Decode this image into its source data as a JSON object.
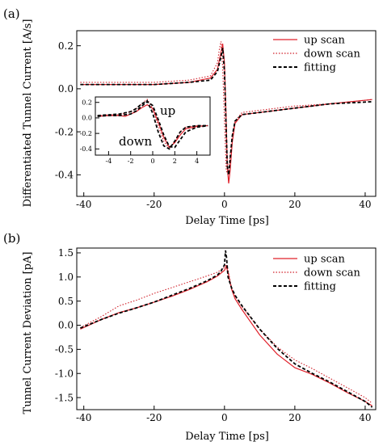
{
  "chart_data": [
    {
      "type": "line",
      "panel_label": "(a)",
      "xlabel": "Delay Time [ps]",
      "ylabel": "Differentiated Tunnel Current [A/s]",
      "xlim": [
        -42,
        43
      ],
      "ylim": [
        -0.5,
        0.27
      ],
      "xticks": [
        -40,
        -20,
        0,
        20,
        40
      ],
      "yticks": [
        0.2,
        0.0,
        -0.2,
        -0.4
      ],
      "ytick_labels": [
        "0.2",
        "0.0",
        "-0.2",
        "-0.4"
      ],
      "legend_position": "top-right",
      "series": [
        {
          "name": "up scan",
          "color": "#e0202a",
          "style": "solid",
          "x": [
            -41,
            -30,
            -20,
            -10,
            -4,
            -2,
            -1,
            -0.5,
            0,
            0.4,
            0.8,
            1.2,
            1.6,
            2.2,
            3,
            5,
            10,
            20,
            30,
            42
          ],
          "y": [
            0.02,
            0.02,
            0.02,
            0.03,
            0.05,
            0.09,
            0.17,
            0.21,
            0.12,
            -0.1,
            -0.36,
            -0.44,
            -0.38,
            -0.25,
            -0.16,
            -0.12,
            -0.11,
            -0.09,
            -0.07,
            -0.05
          ]
        },
        {
          "name": "down scan",
          "color": "#d0202a",
          "style": "dotted",
          "x": [
            -41,
            -30,
            -20,
            -10,
            -4,
            -2,
            -1.5,
            -1,
            -0.5,
            0,
            0.5,
            1,
            1.5,
            2.2,
            3,
            5,
            10,
            20,
            30,
            42
          ],
          "y": [
            0.03,
            0.03,
            0.03,
            0.04,
            0.06,
            0.12,
            0.18,
            0.22,
            0.1,
            -0.15,
            -0.38,
            -0.4,
            -0.32,
            -0.22,
            -0.15,
            -0.11,
            -0.1,
            -0.08,
            -0.07,
            -0.05
          ]
        },
        {
          "name": "fitting",
          "color": "#000000",
          "style": "dashed",
          "x": [
            -41,
            -30,
            -20,
            -10,
            -4,
            -2,
            -1,
            -0.5,
            0,
            0.4,
            0.8,
            1.2,
            1.6,
            2.2,
            3,
            5,
            10,
            20,
            30,
            42
          ],
          "y": [
            0.02,
            0.02,
            0.02,
            0.03,
            0.04,
            0.08,
            0.15,
            0.19,
            0.08,
            -0.15,
            -0.36,
            -0.4,
            -0.33,
            -0.22,
            -0.15,
            -0.12,
            -0.11,
            -0.09,
            -0.07,
            -0.06
          ]
        }
      ],
      "inset": {
        "xlim": [
          -5.2,
          5.2
        ],
        "ylim": [
          -0.48,
          0.27
        ],
        "xticks": [
          -4,
          -2,
          0,
          2,
          4
        ],
        "yticks": [
          0.2,
          0.0,
          -0.2,
          -0.4
        ],
        "ytick_labels": [
          "0.2",
          "0.0",
          "-0.2",
          "-0.4"
        ],
        "annotations": [
          "up",
          "down"
        ],
        "series": [
          {
            "name": "up scan",
            "color": "#e0202a",
            "style": "solid",
            "x": [
              -5,
              -4,
              -3,
              -2.5,
              -2,
              -1.5,
              -1,
              -0.5,
              0,
              0.5,
              1,
              1.5,
              2,
              2.5,
              3,
              4,
              5
            ],
            "y": [
              0.02,
              0.03,
              0.03,
              0.02,
              0.05,
              0.08,
              0.13,
              0.17,
              0.12,
              -0.05,
              -0.25,
              -0.38,
              -0.32,
              -0.22,
              -0.14,
              -0.11,
              -0.1
            ]
          },
          {
            "name": "down scan",
            "color": "#d0202a",
            "style": "dotted",
            "x": [
              -5,
              -4,
              -3,
              -2,
              -1.5,
              -1,
              -0.5,
              0,
              0.5,
              1,
              1.5,
              2,
              2.5,
              3,
              4,
              5
            ],
            "y": [
              0.03,
              0.04,
              0.04,
              0.08,
              0.12,
              0.18,
              0.24,
              0.12,
              -0.1,
              -0.3,
              -0.4,
              -0.3,
              -0.18,
              -0.12,
              -0.1,
              -0.1
            ]
          },
          {
            "name": "fitting",
            "color": "#000000",
            "style": "dashed",
            "x": [
              -5,
              -4,
              -3,
              -2,
              -1.5,
              -1,
              -0.5,
              0,
              0.5,
              1,
              1.5,
              2,
              2.5,
              3,
              4,
              5
            ],
            "y": [
              0.02,
              0.03,
              0.03,
              0.05,
              0.09,
              0.15,
              0.21,
              0.16,
              -0.02,
              -0.22,
              -0.37,
              -0.38,
              -0.28,
              -0.18,
              -0.12,
              -0.1
            ]
          },
          {
            "name": "fitting",
            "color": "#000000",
            "style": "dashed",
            "x": [
              -5,
              -4,
              -3,
              -2,
              -1.5,
              -1,
              -0.5,
              0,
              0.5,
              1,
              1.5,
              2,
              2.5,
              3,
              4,
              5
            ],
            "y": [
              0.03,
              0.04,
              0.05,
              0.08,
              0.12,
              0.18,
              0.22,
              0.06,
              -0.18,
              -0.36,
              -0.4,
              -0.3,
              -0.18,
              -0.12,
              -0.1,
              -0.1
            ]
          }
        ]
      }
    },
    {
      "type": "line",
      "panel_label": "(b)",
      "xlabel": "Delay Time [ps]",
      "ylabel": "Tunnel Current Deviation [pA]",
      "xlim": [
        -42,
        43
      ],
      "ylim": [
        -1.75,
        1.6
      ],
      "xticks": [
        -40,
        -20,
        0,
        20,
        40
      ],
      "yticks": [
        1.5,
        1.0,
        0.5,
        0.0,
        -0.5,
        -1.0,
        -1.5
      ],
      "ytick_labels": [
        "1.5",
        "1.0",
        "0.5",
        "0.0",
        "-0.5",
        "-1.0",
        "-1.5"
      ],
      "legend_position": "top-right",
      "series": [
        {
          "name": "up scan",
          "color": "#e0202a",
          "style": "solid",
          "x": [
            -41,
            -35,
            -30,
            -25,
            -20,
            -15,
            -10,
            -5,
            -2,
            -1,
            0,
            0.5,
            1,
            2,
            3,
            5,
            10,
            15,
            20,
            25,
            30,
            35,
            40,
            42
          ],
          "y": [
            -0.08,
            0.12,
            0.26,
            0.36,
            0.48,
            0.6,
            0.74,
            0.9,
            1.02,
            1.08,
            1.14,
            1.22,
            1.1,
            0.75,
            0.55,
            0.32,
            -0.2,
            -0.6,
            -0.88,
            -1.02,
            -1.2,
            -1.4,
            -1.58,
            -1.67
          ]
        },
        {
          "name": "down scan",
          "color": "#d0202a",
          "style": "dotted",
          "x": [
            -41,
            -35,
            -30,
            -25,
            -20,
            -15,
            -10,
            -5,
            -2,
            -1,
            0,
            0.5,
            1,
            2,
            3,
            5,
            10,
            15,
            20,
            25,
            30,
            35,
            40,
            42
          ],
          "y": [
            -0.05,
            0.18,
            0.4,
            0.52,
            0.66,
            0.78,
            0.9,
            1.02,
            1.1,
            1.15,
            1.2,
            1.26,
            1.15,
            0.78,
            0.6,
            0.38,
            -0.08,
            -0.45,
            -0.72,
            -0.9,
            -1.1,
            -1.3,
            -1.5,
            -1.62
          ]
        },
        {
          "name": "fitting",
          "color": "#000000",
          "style": "dashed",
          "x": [
            -41,
            -35,
            -30,
            -25,
            -20,
            -15,
            -10,
            -5,
            -2,
            -1,
            0,
            0.3,
            0.6,
            1,
            2,
            3,
            5,
            10,
            15,
            20,
            25,
            30,
            35,
            40,
            42
          ],
          "y": [
            -0.06,
            0.12,
            0.25,
            0.36,
            0.48,
            0.62,
            0.76,
            0.92,
            1.04,
            1.12,
            1.25,
            1.55,
            1.4,
            1.0,
            0.78,
            0.62,
            0.4,
            -0.08,
            -0.48,
            -0.8,
            -1.0,
            -1.18,
            -1.38,
            -1.58,
            -1.7
          ]
        }
      ]
    }
  ]
}
